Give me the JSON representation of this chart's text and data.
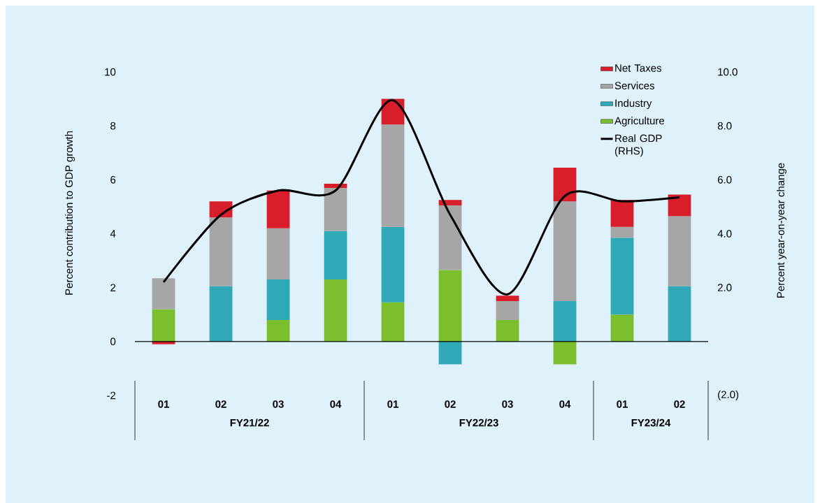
{
  "chart_data": {
    "type": "bar",
    "stacked": true,
    "ylabel": "Percent contribution to GDP growth",
    "y2label": "Percent year-on-year change",
    "categories": [
      "01",
      "02",
      "03",
      "04",
      "01",
      "02",
      "03",
      "04",
      "01",
      "02"
    ],
    "annotations": [
      "FY21/22",
      "FY22/23",
      "FY23/24"
    ],
    "series": [
      {
        "name": "Agriculture",
        "color": "#7cbf2e",
        "values": [
          1.2,
          0,
          0.8,
          2.3,
          1.45,
          2.65,
          0.8,
          -0.85,
          1.0,
          0
        ]
      },
      {
        "name": "Industry",
        "color": "#2fa9b8",
        "values": [
          0,
          2.05,
          1.5,
          1.8,
          2.8,
          -0.85,
          0,
          1.5,
          2.85,
          2.05
        ]
      },
      {
        "name": "Services",
        "color": "#a6a6a6",
        "values": [
          1.15,
          2.55,
          1.9,
          1.6,
          3.8,
          2.4,
          0.7,
          3.7,
          0.4,
          2.6
        ]
      },
      {
        "name": "Net Taxes",
        "color": "#d81e2a",
        "values": [
          -0.1,
          0.6,
          1.4,
          0.15,
          0.95,
          0.2,
          0.2,
          1.25,
          1.0,
          0.8
        ]
      },
      {
        "name": "Real GDP (RHS)",
        "type": "line",
        "axis": "y2",
        "color": "#000000",
        "values": [
          2.2,
          4.7,
          5.6,
          5.6,
          8.95,
          4.7,
          1.75,
          5.4,
          5.2,
          5.35
        ]
      }
    ],
    "ylim": [
      -2,
      10
    ],
    "yticks": [
      -2,
      0,
      2,
      4,
      6,
      8,
      10
    ],
    "y2lim": [
      -2,
      10
    ],
    "y2ticks": [
      {
        "value": -2,
        "label": "(2.0)"
      },
      {
        "value": 2,
        "label": "2.0"
      },
      {
        "value": 4,
        "label": "4.0"
      },
      {
        "value": 6,
        "label": "6.0"
      },
      {
        "value": 8,
        "label": "8.0"
      },
      {
        "value": 10,
        "label": "10.0"
      }
    ],
    "ref_lines": [
      {
        "axis": "y",
        "value": 0,
        "color": "#000000"
      }
    ],
    "legend": "top right",
    "grid": false
  }
}
